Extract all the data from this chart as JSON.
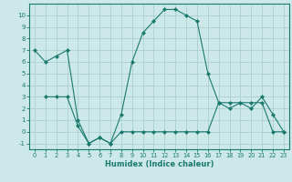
{
  "xlabel": "Humidex (Indice chaleur)",
  "line1_x": [
    0,
    1,
    2,
    3,
    4,
    5,
    6,
    7,
    8,
    9,
    10,
    11,
    12,
    13,
    14,
    15,
    16,
    17,
    18,
    19,
    20,
    21,
    22,
    23
  ],
  "line1_y": [
    7,
    6,
    6.5,
    7,
    1,
    -1,
    -0.5,
    -1,
    1.5,
    6,
    8.5,
    9.5,
    10.5,
    10.5,
    10,
    9.5,
    5,
    2.5,
    2,
    2.5,
    2,
    3,
    1.5,
    0
  ],
  "line2_x": [
    1,
    2,
    3,
    4,
    5,
    6,
    7,
    8,
    9,
    10,
    11,
    12,
    13,
    14,
    15,
    16,
    17,
    18,
    19,
    20,
    21,
    22,
    23
  ],
  "line2_y": [
    3,
    3,
    3,
    0.5,
    -1,
    -0.5,
    -1,
    0,
    0,
    0,
    0,
    0,
    0,
    0,
    0,
    0,
    2.5,
    2.5,
    2.5,
    2.5,
    2.5,
    0,
    0
  ],
  "line_color": "#1a7a6e",
  "bg_color": "#cde8e8",
  "grid_color": "#aacfcf",
  "ylim": [
    -1.5,
    11
  ],
  "xlim": [
    -0.5,
    23.5
  ],
  "yticks": [
    -1,
    0,
    1,
    2,
    3,
    4,
    5,
    6,
    7,
    8,
    9,
    10
  ],
  "xticks": [
    0,
    1,
    2,
    3,
    4,
    5,
    6,
    7,
    8,
    9,
    10,
    11,
    12,
    13,
    14,
    15,
    16,
    17,
    18,
    19,
    20,
    21,
    22,
    23
  ]
}
